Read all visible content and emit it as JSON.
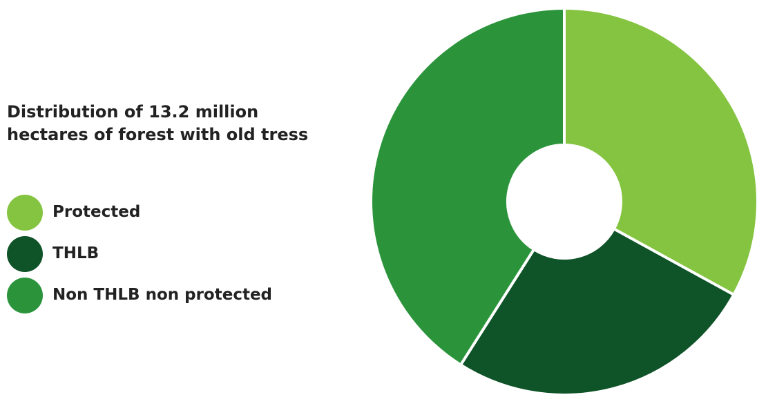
{
  "chart_data": {
    "type": "pie",
    "title_lines": [
      "Distribution of 13.2 million",
      "hectares of forest with old tress"
    ],
    "categories": [
      "Protected",
      "THLB",
      "Non THLB non protected"
    ],
    "values": [
      33,
      26,
      41
    ],
    "colors": [
      "#84c441",
      "#0f5328",
      "#2b943b"
    ],
    "legend_position": "left"
  }
}
